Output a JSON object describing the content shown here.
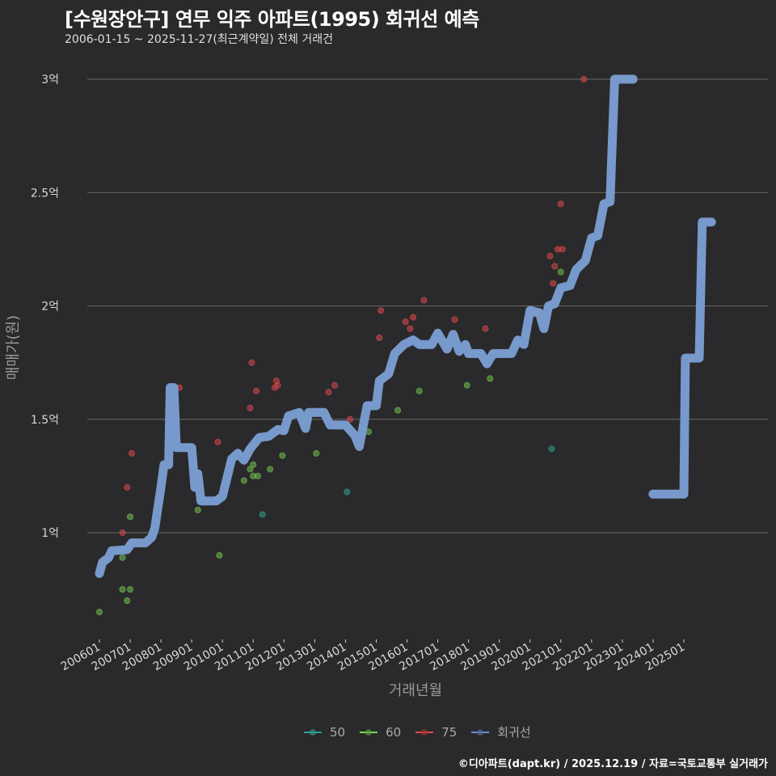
{
  "header": {
    "title": "[수원장안구] 연무 익주 아파트(1995) 회귀선 예측",
    "subtitle": "2006-01-15 ~ 2025-11-27(최근계약일) 전체 거래건"
  },
  "footer": {
    "credit": "©디아파트(dapt.kr) / 2025.12.19 / 자료=국토교통부 실거래가"
  },
  "legend": [
    {
      "label": "50",
      "color": "#2e9e8f"
    },
    {
      "label": "60",
      "color": "#7ed957"
    },
    {
      "label": "75",
      "color": "#e0474c"
    },
    {
      "label": "회귀선",
      "color": "#6b8fc9"
    }
  ],
  "colors": {
    "background": "#2a292b",
    "grid": "#6a6a6a",
    "regression": "#7b9fd4",
    "s50": "#2e9e8f",
    "s60": "#6fbf4f",
    "s75": "#d8484c"
  },
  "chart_data": {
    "type": "scatter",
    "title": "[수원장안구] 연무 익주 아파트(1995) 회귀선 예측",
    "subtitle": "2006-01-15 ~ 2025-11-27(최근계약일) 전체 거래건",
    "xlabel": "거래년월",
    "ylabel": "매매가(원)",
    "x_ticks": [
      "200601",
      "200701",
      "200801",
      "200901",
      "201001",
      "201101",
      "201201",
      "201301",
      "201401",
      "201501",
      "201601",
      "201701",
      "201801",
      "201901",
      "202001",
      "202101",
      "202201",
      "202301",
      "202401",
      "202501"
    ],
    "y_ticks": [
      {
        "value": 10000,
        "label": "1억"
      },
      {
        "value": 15000,
        "label": "1.5억"
      },
      {
        "value": 20000,
        "label": "2억"
      },
      {
        "value": 25000,
        "label": "2.5억"
      },
      {
        "value": 30000,
        "label": "3억"
      }
    ],
    "y_unit": "만원",
    "ylim": [
      7500,
      31000
    ],
    "xlim": [
      "200510",
      "202601"
    ],
    "grid": "horizontal",
    "legend_position": "bottom",
    "series": [
      {
        "name": "50",
        "points": [
          {
            "x": 2011.3,
            "y": 10800
          },
          {
            "x": 2014.05,
            "y": 11800
          },
          {
            "x": 2020.7,
            "y": 13700
          }
        ]
      },
      {
        "name": "60",
        "points": [
          {
            "x": 2006.0,
            "y": 6500
          },
          {
            "x": 2006.75,
            "y": 7500
          },
          {
            "x": 2006.9,
            "y": 7000
          },
          {
            "x": 2007.0,
            "y": 7500
          },
          {
            "x": 2006.75,
            "y": 8900
          },
          {
            "x": 2007.0,
            "y": 10700
          },
          {
            "x": 2009.2,
            "y": 11000
          },
          {
            "x": 2009.9,
            "y": 9000
          },
          {
            "x": 2010.7,
            "y": 12300
          },
          {
            "x": 2010.9,
            "y": 12800
          },
          {
            "x": 2011.0,
            "y": 12500
          },
          {
            "x": 2011.0,
            "y": 13000
          },
          {
            "x": 2011.15,
            "y": 12500
          },
          {
            "x": 2011.55,
            "y": 12800
          },
          {
            "x": 2011.95,
            "y": 13400
          },
          {
            "x": 2013.05,
            "y": 13500
          },
          {
            "x": 2014.75,
            "y": 14450
          },
          {
            "x": 2015.7,
            "y": 15400
          },
          {
            "x": 2016.4,
            "y": 16250
          },
          {
            "x": 2017.95,
            "y": 16500
          },
          {
            "x": 2018.7,
            "y": 16800
          },
          {
            "x": 2021.0,
            "y": 21500
          }
        ]
      },
      {
        "name": "75",
        "points": [
          {
            "x": 2006.75,
            "y": 10000
          },
          {
            "x": 2006.9,
            "y": 12000
          },
          {
            "x": 2007.05,
            "y": 13500
          },
          {
            "x": 2008.6,
            "y": 16400
          },
          {
            "x": 2009.85,
            "y": 14000
          },
          {
            "x": 2010.95,
            "y": 17500
          },
          {
            "x": 2010.9,
            "y": 15500
          },
          {
            "x": 2011.1,
            "y": 16250
          },
          {
            "x": 2011.7,
            "y": 16400
          },
          {
            "x": 2011.75,
            "y": 16700
          },
          {
            "x": 2011.8,
            "y": 16500
          },
          {
            "x": 2013.45,
            "y": 16200
          },
          {
            "x": 2013.65,
            "y": 16500
          },
          {
            "x": 2014.15,
            "y": 15000
          },
          {
            "x": 2015.1,
            "y": 18600
          },
          {
            "x": 2015.15,
            "y": 19800
          },
          {
            "x": 2015.95,
            "y": 19300
          },
          {
            "x": 2016.1,
            "y": 19000
          },
          {
            "x": 2016.2,
            "y": 19500
          },
          {
            "x": 2016.55,
            "y": 20250
          },
          {
            "x": 2017.55,
            "y": 19400
          },
          {
            "x": 2018.55,
            "y": 19000
          },
          {
            "x": 2019.3,
            "y": 17900
          },
          {
            "x": 2020.15,
            "y": 19650
          },
          {
            "x": 2020.25,
            "y": 19700
          },
          {
            "x": 2020.65,
            "y": 22200
          },
          {
            "x": 2020.8,
            "y": 21750
          },
          {
            "x": 2020.9,
            "y": 22500
          },
          {
            "x": 2021.05,
            "y": 22500
          },
          {
            "x": 2021.0,
            "y": 24500
          },
          {
            "x": 2021.75,
            "y": 30000
          },
          {
            "x": 2020.75,
            "y": 21000
          }
        ]
      },
      {
        "name": "회귀선",
        "type": "line",
        "points": [
          {
            "x": 2006.0,
            "y": 8200
          },
          {
            "x": 2006.1,
            "y": 8700
          },
          {
            "x": 2006.3,
            "y": 8900
          },
          {
            "x": 2006.4,
            "y": 9200
          },
          {
            "x": 2006.9,
            "y": 9250
          },
          {
            "x": 2007.05,
            "y": 9550
          },
          {
            "x": 2007.5,
            "y": 9550
          },
          {
            "x": 2007.7,
            "y": 9800
          },
          {
            "x": 2007.8,
            "y": 10200
          },
          {
            "x": 2008.0,
            "y": 12000
          },
          {
            "x": 2008.1,
            "y": 13000
          },
          {
            "x": 2008.25,
            "y": 13000
          },
          {
            "x": 2008.3,
            "y": 16400
          },
          {
            "x": 2008.42,
            "y": 16400
          },
          {
            "x": 2008.5,
            "y": 13750
          },
          {
            "x": 2009.0,
            "y": 13750
          },
          {
            "x": 2009.1,
            "y": 12000
          },
          {
            "x": 2009.2,
            "y": 12600
          },
          {
            "x": 2009.3,
            "y": 11400
          },
          {
            "x": 2009.8,
            "y": 11400
          },
          {
            "x": 2010.0,
            "y": 11600
          },
          {
            "x": 2010.3,
            "y": 13250
          },
          {
            "x": 2010.5,
            "y": 13500
          },
          {
            "x": 2010.7,
            "y": 13200
          },
          {
            "x": 2010.9,
            "y": 13700
          },
          {
            "x": 2011.2,
            "y": 14200
          },
          {
            "x": 2011.5,
            "y": 14250
          },
          {
            "x": 2011.8,
            "y": 14550
          },
          {
            "x": 2012.0,
            "y": 14500
          },
          {
            "x": 2012.15,
            "y": 15150
          },
          {
            "x": 2012.5,
            "y": 15300
          },
          {
            "x": 2012.7,
            "y": 14600
          },
          {
            "x": 2012.8,
            "y": 15300
          },
          {
            "x": 2013.3,
            "y": 15300
          },
          {
            "x": 2013.5,
            "y": 14750
          },
          {
            "x": 2014.0,
            "y": 14750
          },
          {
            "x": 2014.3,
            "y": 14300
          },
          {
            "x": 2014.45,
            "y": 13800
          },
          {
            "x": 2014.7,
            "y": 15600
          },
          {
            "x": 2015.0,
            "y": 15600
          },
          {
            "x": 2015.1,
            "y": 16700
          },
          {
            "x": 2015.4,
            "y": 17000
          },
          {
            "x": 2015.6,
            "y": 17900
          },
          {
            "x": 2015.9,
            "y": 18300
          },
          {
            "x": 2016.2,
            "y": 18500
          },
          {
            "x": 2016.4,
            "y": 18300
          },
          {
            "x": 2016.8,
            "y": 18300
          },
          {
            "x": 2017.0,
            "y": 18800
          },
          {
            "x": 2017.3,
            "y": 18100
          },
          {
            "x": 2017.5,
            "y": 18750
          },
          {
            "x": 2017.7,
            "y": 18000
          },
          {
            "x": 2017.9,
            "y": 18300
          },
          {
            "x": 2018.0,
            "y": 17900
          },
          {
            "x": 2018.4,
            "y": 17900
          },
          {
            "x": 2018.6,
            "y": 17450
          },
          {
            "x": 2018.8,
            "y": 17900
          },
          {
            "x": 2019.4,
            "y": 17900
          },
          {
            "x": 2019.6,
            "y": 18500
          },
          {
            "x": 2019.8,
            "y": 18300
          },
          {
            "x": 2020.0,
            "y": 19800
          },
          {
            "x": 2020.3,
            "y": 19700
          },
          {
            "x": 2020.45,
            "y": 19000
          },
          {
            "x": 2020.6,
            "y": 20000
          },
          {
            "x": 2020.8,
            "y": 20100
          },
          {
            "x": 2021.0,
            "y": 20800
          },
          {
            "x": 2021.3,
            "y": 20900
          },
          {
            "x": 2021.5,
            "y": 21600
          },
          {
            "x": 2021.8,
            "y": 22000
          },
          {
            "x": 2022.0,
            "y": 23000
          },
          {
            "x": 2022.2,
            "y": 23100
          },
          {
            "x": 2022.4,
            "y": 24500
          },
          {
            "x": 2022.6,
            "y": 24600
          },
          {
            "x": 2022.75,
            "y": 30000
          },
          {
            "x": 2023.35,
            "y": 30000
          }
        ],
        "segment2": [
          {
            "x": 2024.0,
            "y": 11700
          },
          {
            "x": 2025.0,
            "y": 11700
          },
          {
            "x": 2025.05,
            "y": 17700
          },
          {
            "x": 2025.5,
            "y": 17700
          },
          {
            "x": 2025.6,
            "y": 23700
          },
          {
            "x": 2025.9,
            "y": 23700
          }
        ]
      }
    ]
  },
  "axes": {
    "xlabel": "거래년월",
    "ylabel": "매매가(원)"
  }
}
